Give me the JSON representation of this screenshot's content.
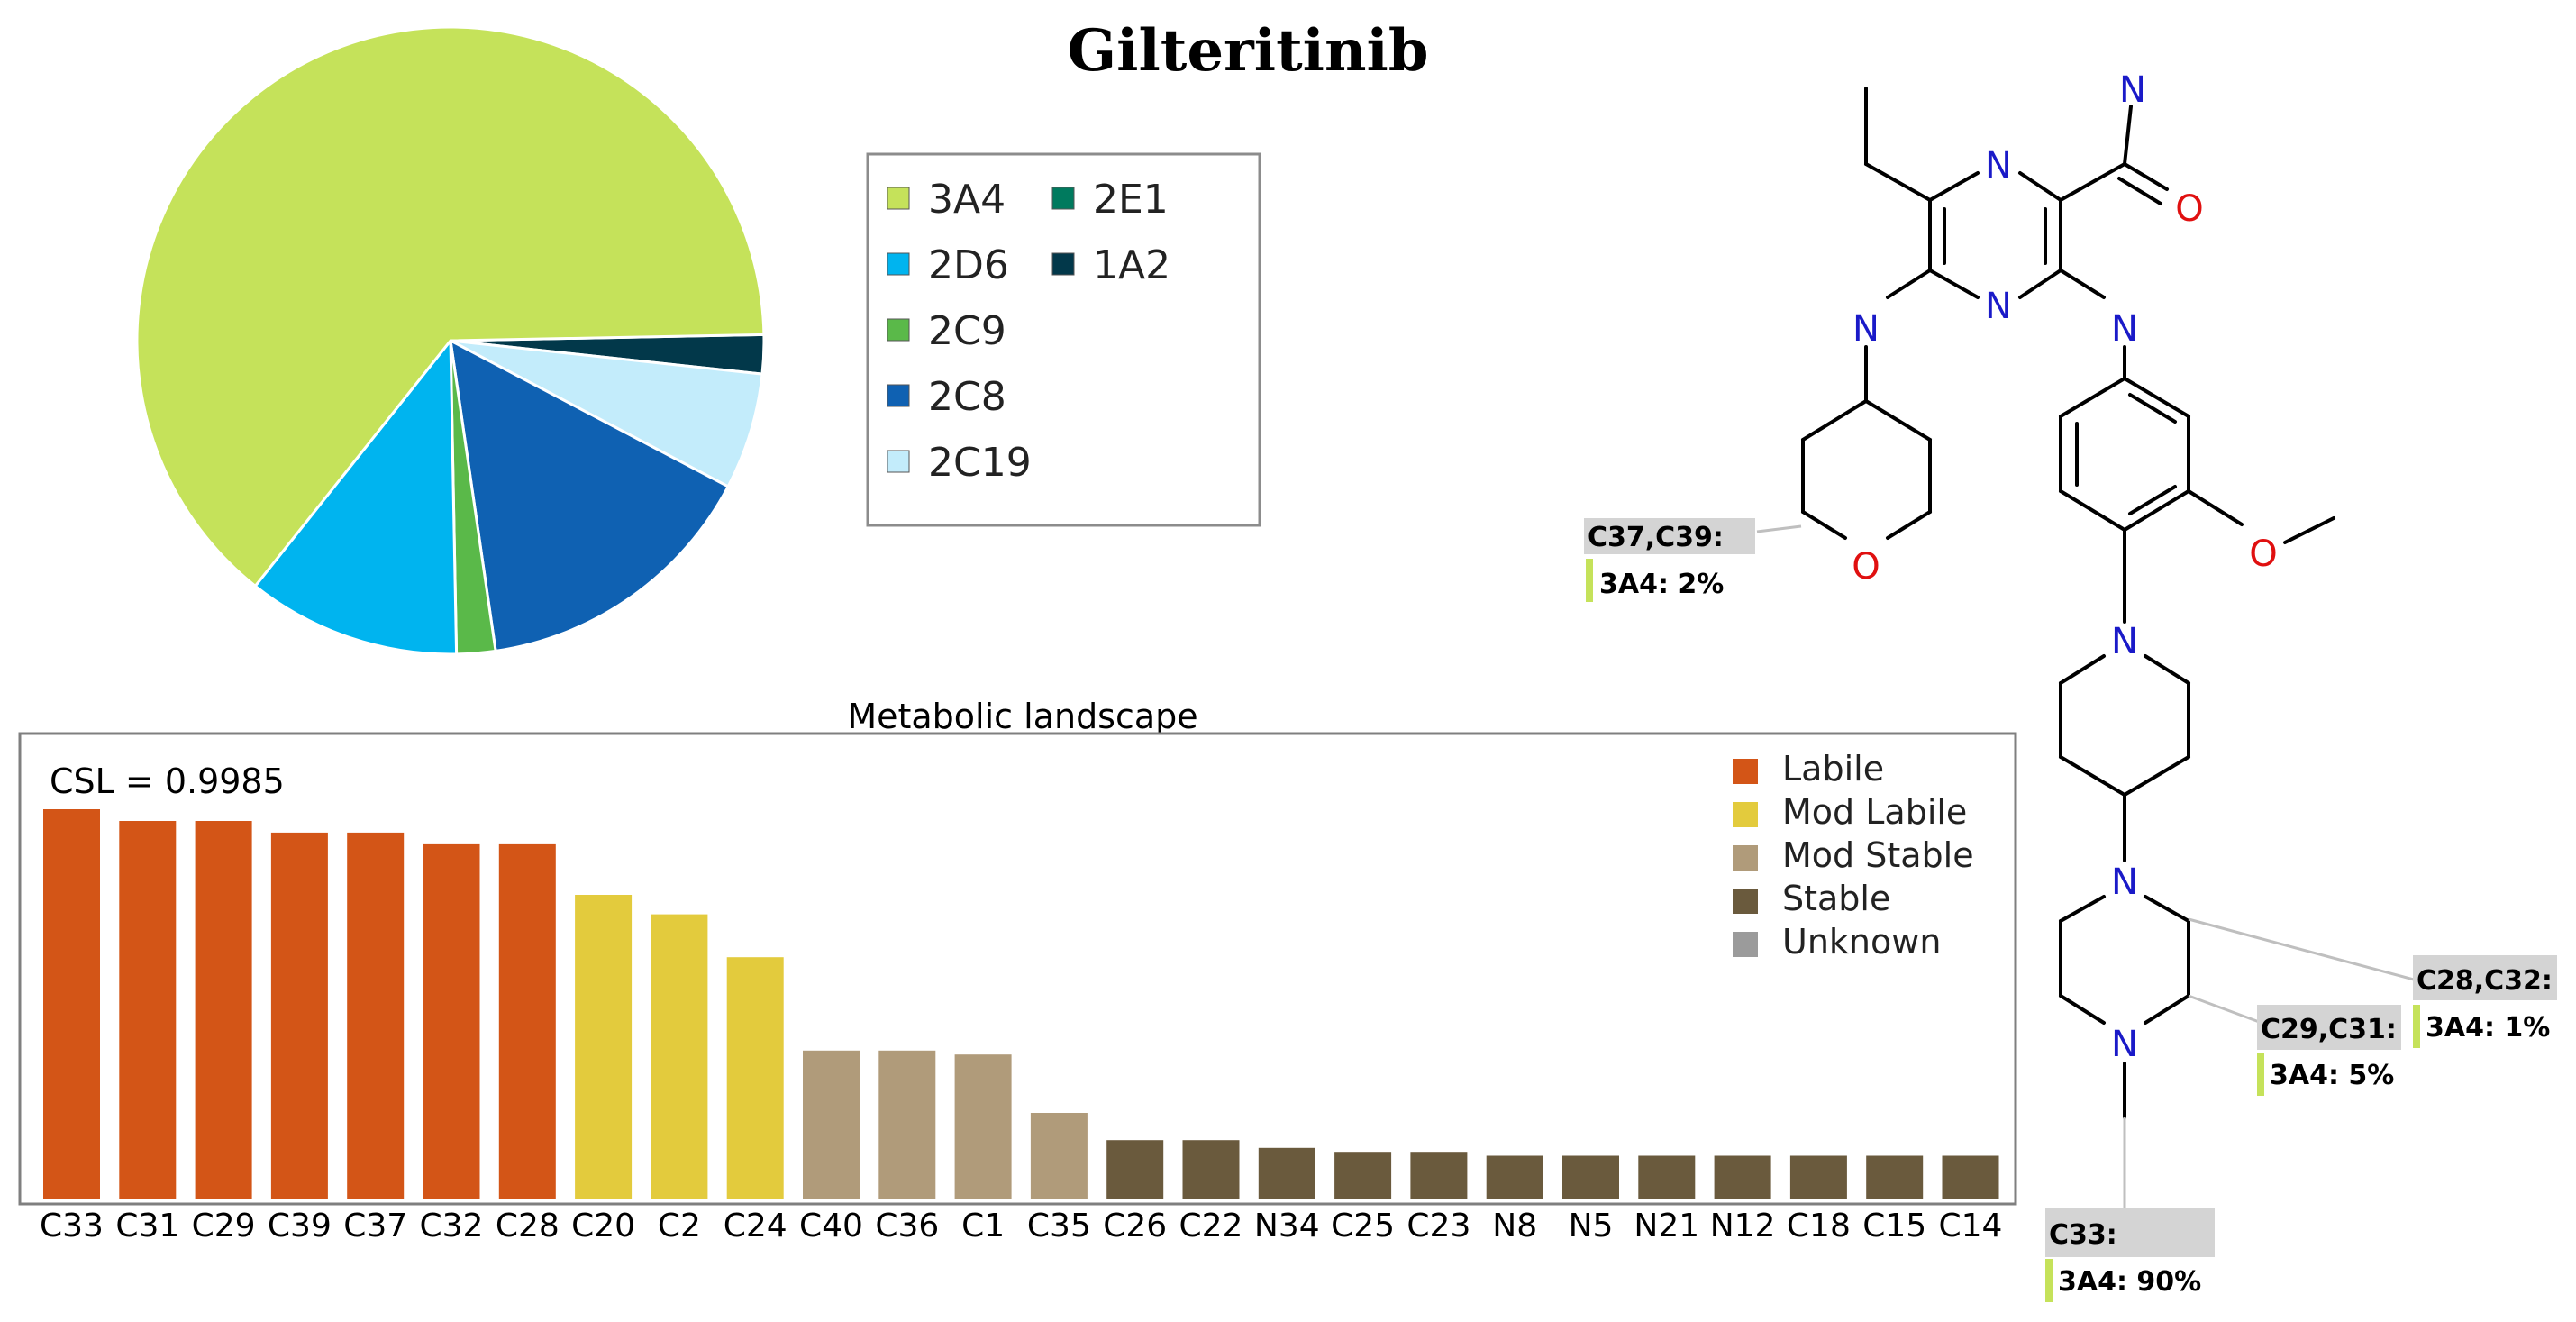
{
  "title": "Gilteritinib",
  "chart_data": [
    {
      "type": "pie",
      "title": "",
      "labels": [
        "3A4",
        "2D6",
        "2C9",
        "2C8",
        "2C19",
        "2E1",
        "1A2"
      ],
      "values": [
        64,
        11,
        2,
        15,
        6,
        0,
        2
      ],
      "colors": [
        "#c5e25a",
        "#00b4ef",
        "#5ab949",
        "#0f61b2",
        "#c3ecfb",
        "#007a5e",
        "#02384a"
      ],
      "legend_columns": [
        [
          "3A4",
          "2D6",
          "2C9",
          "2C8",
          "2C19"
        ],
        [
          "2E1",
          "1A2"
        ]
      ]
    },
    {
      "type": "bar",
      "title": "Metabolic landscape",
      "annotation": "CSL = 0.9985",
      "categories": [
        "C33",
        "C31",
        "C29",
        "C39",
        "C37",
        "C32",
        "C28",
        "C20",
        "C2",
        "C24",
        "C40",
        "C36",
        "C1",
        "C35",
        "C26",
        "C22",
        "N34",
        "C25",
        "C23",
        "N8",
        "N5",
        "N21",
        "N12",
        "C18",
        "C15",
        "C14"
      ],
      "values": [
        1.0,
        0.97,
        0.97,
        0.94,
        0.94,
        0.91,
        0.91,
        0.78,
        0.73,
        0.62,
        0.38,
        0.38,
        0.37,
        0.22,
        0.15,
        0.15,
        0.13,
        0.12,
        0.12,
        0.11,
        0.11,
        0.11,
        0.11,
        0.11,
        0.11,
        0.11
      ],
      "classes": [
        "Labile",
        "Labile",
        "Labile",
        "Labile",
        "Labile",
        "Labile",
        "Labile",
        "Mod Labile",
        "Mod Labile",
        "Mod Labile",
        "Mod Stable",
        "Mod Stable",
        "Mod Stable",
        "Mod Stable",
        "Stable",
        "Stable",
        "Stable",
        "Stable",
        "Stable",
        "Stable",
        "Stable",
        "Stable",
        "Stable",
        "Stable",
        "Stable",
        "Stable"
      ],
      "legend": [
        {
          "label": "Labile",
          "color": "#d35517"
        },
        {
          "label": "Mod Labile",
          "color": "#e3cb3d"
        },
        {
          "label": "Mod Stable",
          "color": "#b09b7a"
        },
        {
          "label": "Stable",
          "color": "#6a5a3d"
        },
        {
          "label": "Unknown",
          "color": "#9b9b9b"
        }
      ],
      "ylim": [
        0,
        1
      ],
      "xlabel": "",
      "ylabel": ""
    }
  ],
  "molecule": {
    "atom_labels": {
      "n_ring_top": "N",
      "n_ring_bottom": "N",
      "n_amide": "N",
      "o_amide": "O",
      "n_left_amine": "N",
      "n_right_amine": "N",
      "o_pyran": "O",
      "o_methoxy": "O",
      "n_piperidine": "N",
      "n_piperazine_top": "N",
      "n_piperazine_bottom": "N"
    },
    "site_labels": [
      {
        "site": "C37,C39:",
        "value": "3A4: 2%"
      },
      {
        "site": "C28,C32:",
        "value": "3A4: 1%"
      },
      {
        "site": "C29,C31:",
        "value": "3A4: 5%"
      },
      {
        "site": "C33:",
        "value": "3A4: 90%"
      }
    ],
    "site_bar_color": "#c5e25a",
    "label_bg": "#d4d4d4"
  }
}
